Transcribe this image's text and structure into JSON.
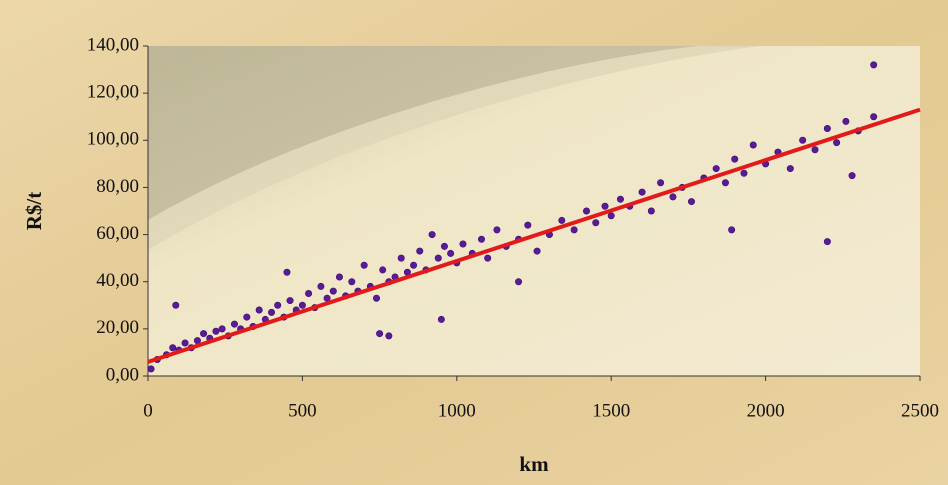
{
  "chart_data": {
    "type": "scatter",
    "x_label": "km",
    "y_label": "R$/t",
    "xlim": [
      0,
      2500
    ],
    "ylim": [
      0,
      140
    ],
    "xticks": [
      0,
      500,
      1000,
      1500,
      2000,
      2500
    ],
    "yticks": [
      {
        "value": 0,
        "label": "0,00"
      },
      {
        "value": 20,
        "label": "20,00"
      },
      {
        "value": 40,
        "label": "40,00"
      },
      {
        "value": 60,
        "label": "60,00"
      },
      {
        "value": 80,
        "label": "80,00"
      },
      {
        "value": 100,
        "label": "100,00"
      },
      {
        "value": 120,
        "label": "120,00"
      },
      {
        "value": 140,
        "label": "140,00"
      }
    ],
    "series": [
      {
        "color": "#5b1a9a",
        "x": [
          10,
          30,
          60,
          80,
          90,
          100,
          120,
          140,
          160,
          180,
          200,
          220,
          240,
          260,
          280,
          300,
          320,
          340,
          360,
          380,
          400,
          420,
          440,
          460,
          480,
          500,
          520,
          540,
          560,
          580,
          600,
          620,
          640,
          660,
          680,
          700,
          720,
          740,
          760,
          780,
          800,
          820,
          840,
          860,
          880,
          900,
          920,
          940,
          960,
          980,
          1000,
          1020,
          1050,
          1080,
          1100,
          1130,
          1160,
          1200,
          1230,
          1260,
          1300,
          1340,
          1380,
          1420,
          1450,
          1480,
          1500,
          1530,
          1560,
          1600,
          1630,
          1660,
          1700,
          1730,
          1760,
          1800,
          1840,
          1870,
          1900,
          1930,
          1960,
          2000,
          2040,
          2080,
          2120,
          2160,
          2200,
          2230,
          2260,
          2300,
          2350,
          2350,
          450,
          750,
          780,
          950,
          1890,
          2200,
          2280,
          1200
        ],
        "values": [
          3,
          7,
          9,
          12,
          30,
          11,
          14,
          12,
          15,
          18,
          16,
          19,
          20,
          17,
          22,
          20,
          25,
          21,
          28,
          24,
          27,
          30,
          25,
          32,
          28,
          30,
          35,
          29,
          38,
          33,
          36,
          42,
          34,
          40,
          36,
          47,
          38,
          33,
          45,
          40,
          42,
          50,
          44,
          47,
          53,
          45,
          60,
          50,
          55,
          52,
          48,
          56,
          52,
          58,
          50,
          62,
          55,
          58,
          64,
          53,
          60,
          66,
          62,
          70,
          65,
          72,
          68,
          75,
          72,
          78,
          70,
          82,
          76,
          80,
          74,
          84,
          88,
          82,
          92,
          86,
          98,
          90,
          95,
          88,
          100,
          96,
          105,
          99,
          108,
          104,
          132,
          110,
          44,
          18,
          17,
          24,
          62,
          57,
          85,
          40
        ]
      }
    ],
    "trend": {
      "color": "#e21a1a",
      "x": [
        0,
        2500
      ],
      "values": [
        6,
        113
      ]
    }
  }
}
